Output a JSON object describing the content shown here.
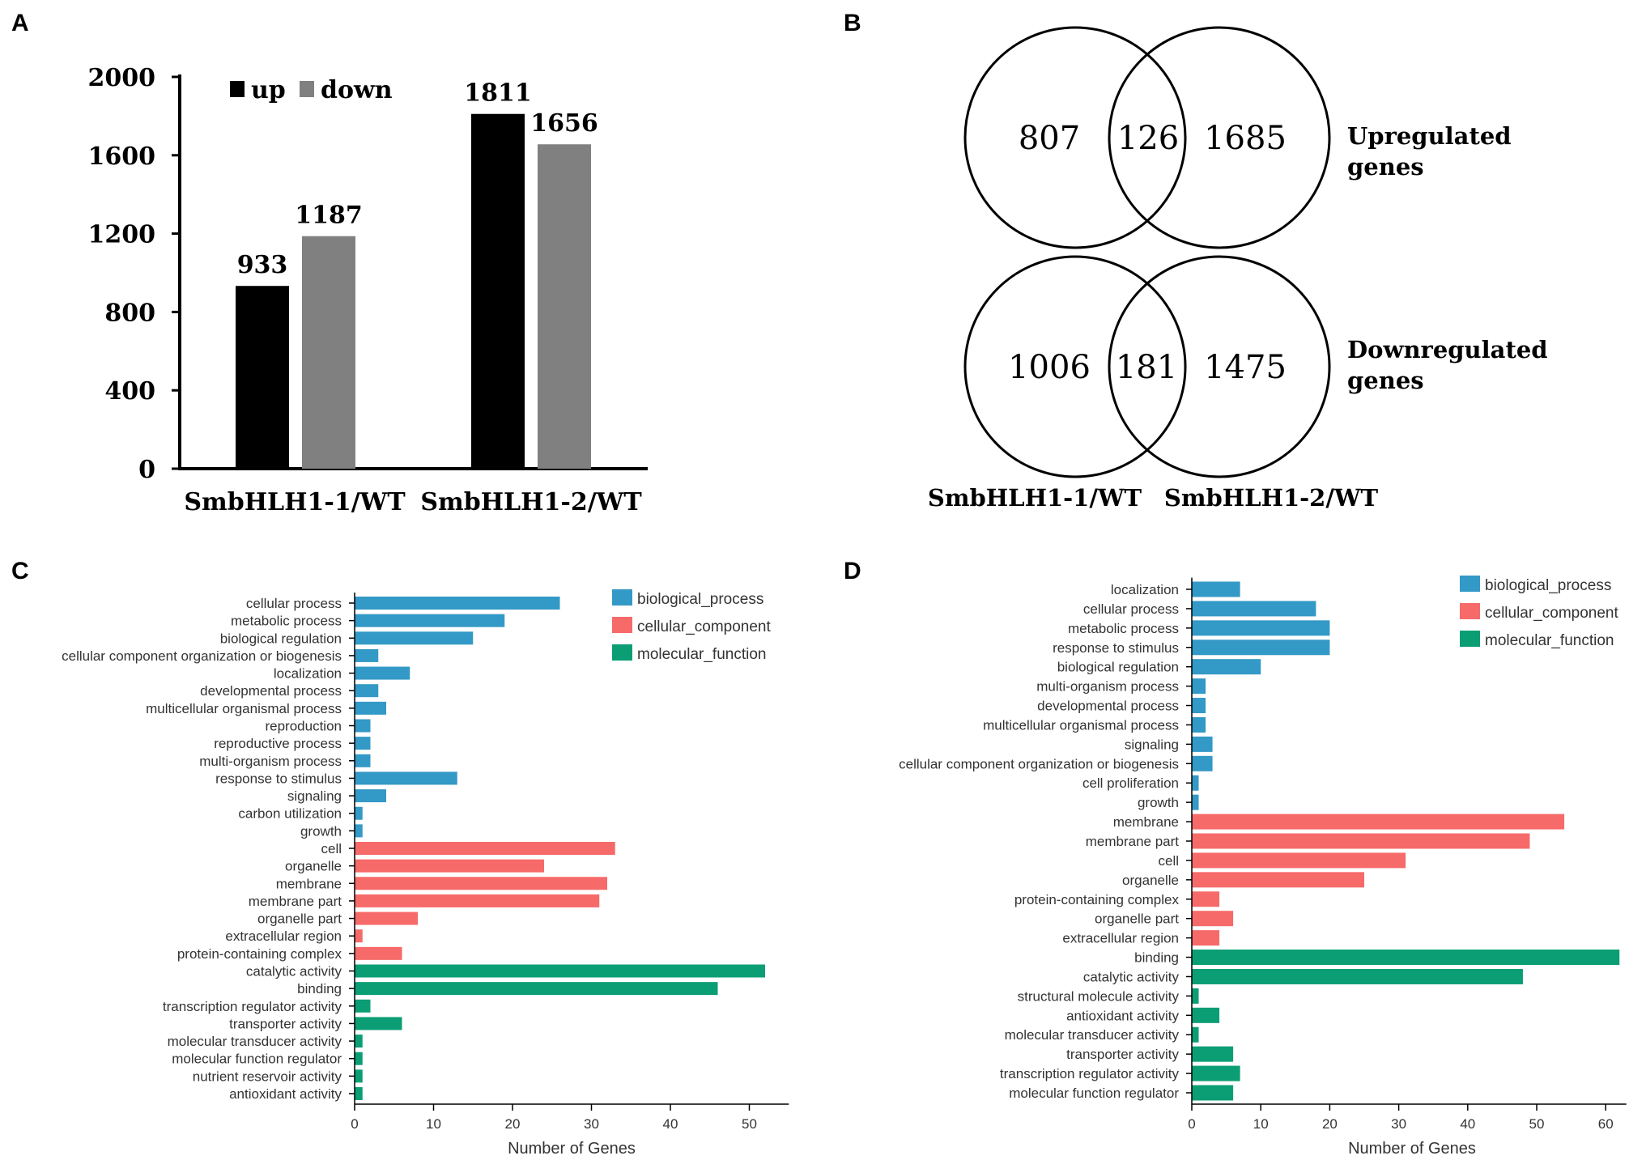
{
  "panel_labels": {
    "a": "A",
    "b": "B",
    "c": "C",
    "d": "D"
  },
  "colors": {
    "up": "#000000",
    "down": "#808080",
    "biological_process": "#3399c6",
    "cellular_component": "#f76a6a",
    "molecular_function": "#0b9e74",
    "axis": "#000000",
    "tick_text": "#333333"
  },
  "chart_data": [
    {
      "id": "A",
      "type": "bar",
      "categories": [
        "SmbHLH1-1/WT",
        "SmbHLH1-2/WT"
      ],
      "series": [
        {
          "name": "up",
          "values": [
            933,
            1811
          ]
        },
        {
          "name": "down",
          "values": [
            1187,
            1656
          ]
        }
      ],
      "yticks": [
        0,
        400,
        800,
        1200,
        1600,
        2000
      ],
      "ylim": [
        0,
        2000
      ],
      "legend": "top-left",
      "title": "",
      "xlabel": "",
      "ylabel": ""
    },
    {
      "id": "B",
      "type": "venn",
      "set_labels": [
        "SmbHLH1-1/WT",
        "SmbHLH1-2/WT"
      ],
      "rows": [
        {
          "name_line1": "Upregulated",
          "name_line2": "genes",
          "left_only": 807,
          "both": 126,
          "right_only": 1685
        },
        {
          "name_line1": "Downregulated",
          "name_line2": "genes",
          "left_only": 1006,
          "both": 181,
          "right_only": 1475
        }
      ]
    },
    {
      "id": "C",
      "type": "bar",
      "orientation": "horizontal",
      "xlabel": "Number of Genes",
      "xlim": [
        0,
        55
      ],
      "xticks": [
        0,
        10,
        20,
        30,
        40,
        50
      ],
      "legend_entries": [
        "biological_process",
        "cellular_component",
        "molecular_function"
      ],
      "legend": "top-right",
      "categories": [
        {
          "label": "cellular process",
          "value": 26,
          "group": "biological_process"
        },
        {
          "label": "metabolic process",
          "value": 19,
          "group": "biological_process"
        },
        {
          "label": "biological regulation",
          "value": 15,
          "group": "biological_process"
        },
        {
          "label": "cellular component organization or biogenesis",
          "value": 3,
          "group": "biological_process"
        },
        {
          "label": "localization",
          "value": 7,
          "group": "biological_process"
        },
        {
          "label": "developmental process",
          "value": 3,
          "group": "biological_process"
        },
        {
          "label": "multicellular organismal process",
          "value": 4,
          "group": "biological_process"
        },
        {
          "label": "reproduction",
          "value": 2,
          "group": "biological_process"
        },
        {
          "label": "reproductive process",
          "value": 2,
          "group": "biological_process"
        },
        {
          "label": "multi-organism process",
          "value": 2,
          "group": "biological_process"
        },
        {
          "label": "response to stimulus",
          "value": 13,
          "group": "biological_process"
        },
        {
          "label": "signaling",
          "value": 4,
          "group": "biological_process"
        },
        {
          "label": "carbon utilization",
          "value": 1,
          "group": "biological_process"
        },
        {
          "label": "growth",
          "value": 1,
          "group": "biological_process"
        },
        {
          "label": "cell",
          "value": 33,
          "group": "cellular_component"
        },
        {
          "label": "organelle",
          "value": 24,
          "group": "cellular_component"
        },
        {
          "label": "membrane",
          "value": 32,
          "group": "cellular_component"
        },
        {
          "label": "membrane part",
          "value": 31,
          "group": "cellular_component"
        },
        {
          "label": "organelle part",
          "value": 8,
          "group": "cellular_component"
        },
        {
          "label": "extracellular region",
          "value": 1,
          "group": "cellular_component"
        },
        {
          "label": "protein-containing complex",
          "value": 6,
          "group": "cellular_component"
        },
        {
          "label": "catalytic activity",
          "value": 52,
          "group": "molecular_function"
        },
        {
          "label": "binding",
          "value": 46,
          "group": "molecular_function"
        },
        {
          "label": "transcription regulator activity",
          "value": 2,
          "group": "molecular_function"
        },
        {
          "label": "transporter activity",
          "value": 6,
          "group": "molecular_function"
        },
        {
          "label": "molecular transducer activity",
          "value": 1,
          "group": "molecular_function"
        },
        {
          "label": "molecular function regulator",
          "value": 1,
          "group": "molecular_function"
        },
        {
          "label": "nutrient reservoir activity",
          "value": 1,
          "group": "molecular_function"
        },
        {
          "label": "antioxidant activity",
          "value": 1,
          "group": "molecular_function"
        }
      ]
    },
    {
      "id": "D",
      "type": "bar",
      "orientation": "horizontal",
      "xlabel": "Number of Genes",
      "xlim": [
        0,
        63
      ],
      "xticks": [
        0,
        10,
        20,
        30,
        40,
        50,
        60
      ],
      "legend_entries": [
        "biological_process",
        "cellular_component",
        "molecular_function"
      ],
      "legend": "top-right",
      "categories": [
        {
          "label": "localization",
          "value": 7,
          "group": "biological_process"
        },
        {
          "label": "cellular process",
          "value": 18,
          "group": "biological_process"
        },
        {
          "label": "metabolic process",
          "value": 20,
          "group": "biological_process"
        },
        {
          "label": "response to stimulus",
          "value": 20,
          "group": "biological_process"
        },
        {
          "label": "biological regulation",
          "value": 10,
          "group": "biological_process"
        },
        {
          "label": "multi-organism process",
          "value": 2,
          "group": "biological_process"
        },
        {
          "label": "developmental process",
          "value": 2,
          "group": "biological_process"
        },
        {
          "label": "multicellular organismal process",
          "value": 2,
          "group": "biological_process"
        },
        {
          "label": "signaling",
          "value": 3,
          "group": "biological_process"
        },
        {
          "label": "cellular component organization or biogenesis",
          "value": 3,
          "group": "biological_process"
        },
        {
          "label": "cell proliferation",
          "value": 1,
          "group": "biological_process"
        },
        {
          "label": "growth",
          "value": 1,
          "group": "biological_process"
        },
        {
          "label": "membrane",
          "value": 54,
          "group": "cellular_component"
        },
        {
          "label": "membrane part",
          "value": 49,
          "group": "cellular_component"
        },
        {
          "label": "cell",
          "value": 31,
          "group": "cellular_component"
        },
        {
          "label": "organelle",
          "value": 25,
          "group": "cellular_component"
        },
        {
          "label": "protein-containing complex",
          "value": 4,
          "group": "cellular_component"
        },
        {
          "label": "organelle part",
          "value": 6,
          "group": "cellular_component"
        },
        {
          "label": "extracellular region",
          "value": 4,
          "group": "cellular_component"
        },
        {
          "label": "binding",
          "value": 62,
          "group": "molecular_function"
        },
        {
          "label": "catalytic activity",
          "value": 48,
          "group": "molecular_function"
        },
        {
          "label": "structural molecule activity",
          "value": 1,
          "group": "molecular_function"
        },
        {
          "label": "antioxidant activity",
          "value": 4,
          "group": "molecular_function"
        },
        {
          "label": "molecular transducer activity",
          "value": 1,
          "group": "molecular_function"
        },
        {
          "label": "transporter activity",
          "value": 6,
          "group": "molecular_function"
        },
        {
          "label": "transcription regulator activity",
          "value": 7,
          "group": "molecular_function"
        },
        {
          "label": "molecular function regulator",
          "value": 6,
          "group": "molecular_function"
        }
      ]
    }
  ]
}
